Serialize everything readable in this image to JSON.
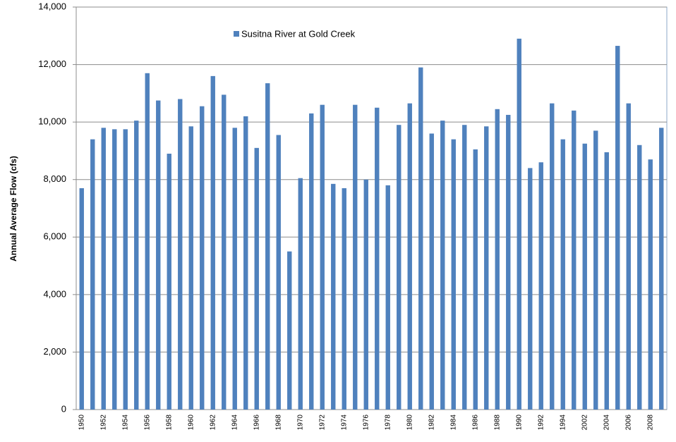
{
  "chart_data": {
    "type": "bar",
    "y_label": "Annual Average Flow (cfs)",
    "series": [
      {
        "name": "Susitna River at Gold Creek",
        "color": "#4f81bd",
        "values": [
          7700,
          9400,
          9800,
          9750,
          9750,
          10050,
          11700,
          10750,
          8900,
          10800,
          9850,
          10550,
          11600,
          10950,
          9800,
          10200,
          9100,
          11350,
          9550,
          5500,
          8050,
          10300,
          10600,
          7850,
          7700,
          10600,
          8000,
          10500,
          7800,
          9900,
          10650,
          11900,
          9600,
          10050,
          9400,
          9900,
          9050,
          9850,
          10450,
          10250,
          12900,
          8400,
          8600,
          10650,
          9400,
          10400,
          9250,
          9700,
          8950,
          12650,
          10650,
          9200,
          8700,
          9800
        ]
      }
    ],
    "categories": [
      "1950",
      null,
      "1952",
      null,
      "1954",
      null,
      "1956",
      null,
      "1958",
      null,
      "1960",
      null,
      "1962",
      null,
      "1964",
      null,
      "1966",
      null,
      "1968",
      null,
      "1970",
      null,
      "1972",
      null,
      "1974",
      null,
      "1976",
      null,
      "1978",
      null,
      "1980",
      null,
      "1982",
      null,
      "1984",
      null,
      "1986",
      null,
      "1988",
      null,
      "1990",
      null,
      "1992",
      null,
      "1994",
      null,
      "2002",
      null,
      "2004",
      null,
      "2006",
      null,
      "2008",
      null
    ],
    "ylim": [
      0,
      14000
    ],
    "yticks": [
      0,
      {
        "value": 2000,
        "label": "2,000"
      },
      {
        "value": 4000,
        "label": "4,000"
      },
      {
        "value": 6000,
        "label": "6,000"
      },
      {
        "value": 8000,
        "label": "8,000"
      },
      {
        "value": 10000,
        "label": "10,000"
      },
      {
        "value": 12000,
        "label": "12,000"
      },
      {
        "value": 14000,
        "label": "14,000"
      }
    ],
    "grid": true
  }
}
